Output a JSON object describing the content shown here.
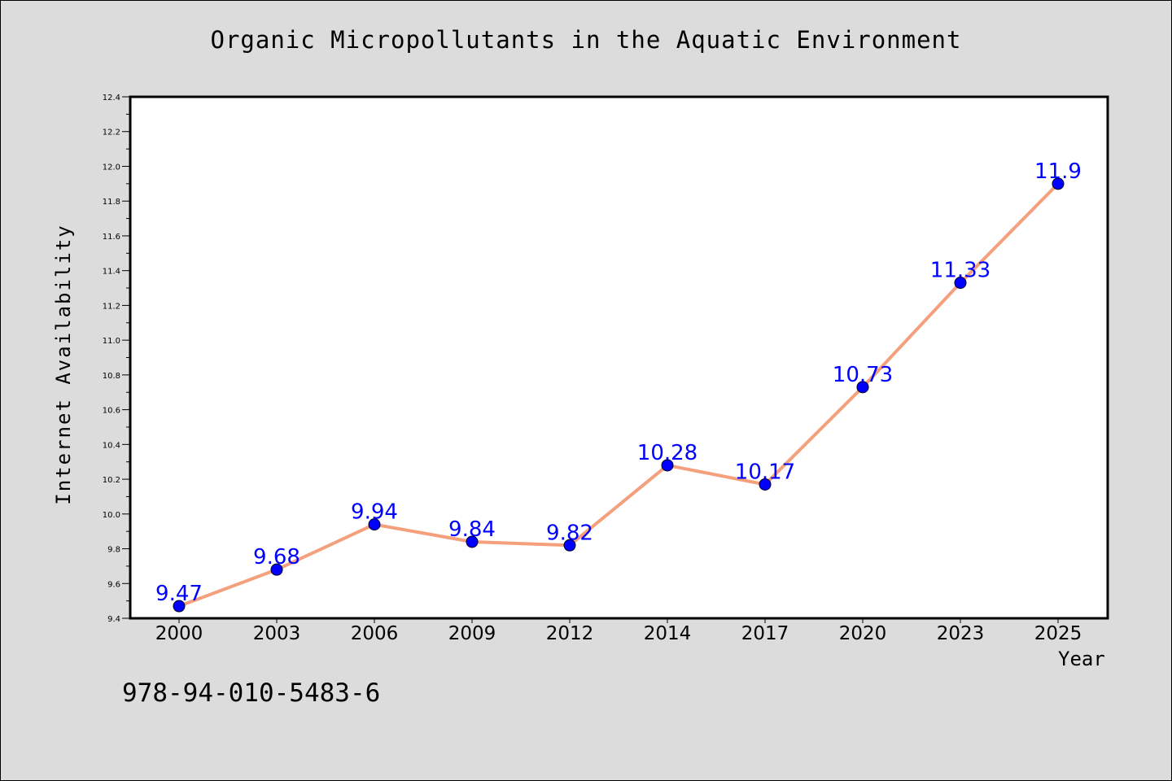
{
  "chart_data": {
    "type": "line",
    "title": "Organic Micropollutants in the Aquatic Environment",
    "xlabel": "Year",
    "ylabel": "Internet Availability",
    "categories": [
      "2000",
      "2003",
      "2006",
      "2009",
      "2012",
      "2014",
      "2017",
      "2020",
      "2023",
      "2025"
    ],
    "series": [
      {
        "values": [
          9.47,
          9.68,
          9.94,
          9.84,
          9.82,
          10.28,
          10.17,
          10.73,
          11.33,
          11.9
        ],
        "labels": [
          "9.47",
          "9.68",
          "9.94",
          "9.84",
          "9.82",
          "10.28",
          "10.17",
          "10.73",
          "11.33",
          "11.9"
        ],
        "line_color": "#f4a07c",
        "marker_color": "#0000ff",
        "label_color": "#0000ff"
      }
    ],
    "ylim": [
      9.4,
      12.4
    ],
    "y_ticks": [
      "9.4",
      "9.6",
      "9.8",
      "10.0",
      "10.2",
      "10.4",
      "10.6",
      "10.8",
      "11.0",
      "11.2",
      "11.4",
      "11.6",
      "11.8",
      "12.0",
      "12.2",
      "12.4"
    ],
    "grid": false,
    "legend": "none"
  },
  "footer": {
    "isbn": "978-94-010-5483-6"
  },
  "colors": {
    "background": "#dcdcdc",
    "plot_area": "#ffffff"
  }
}
